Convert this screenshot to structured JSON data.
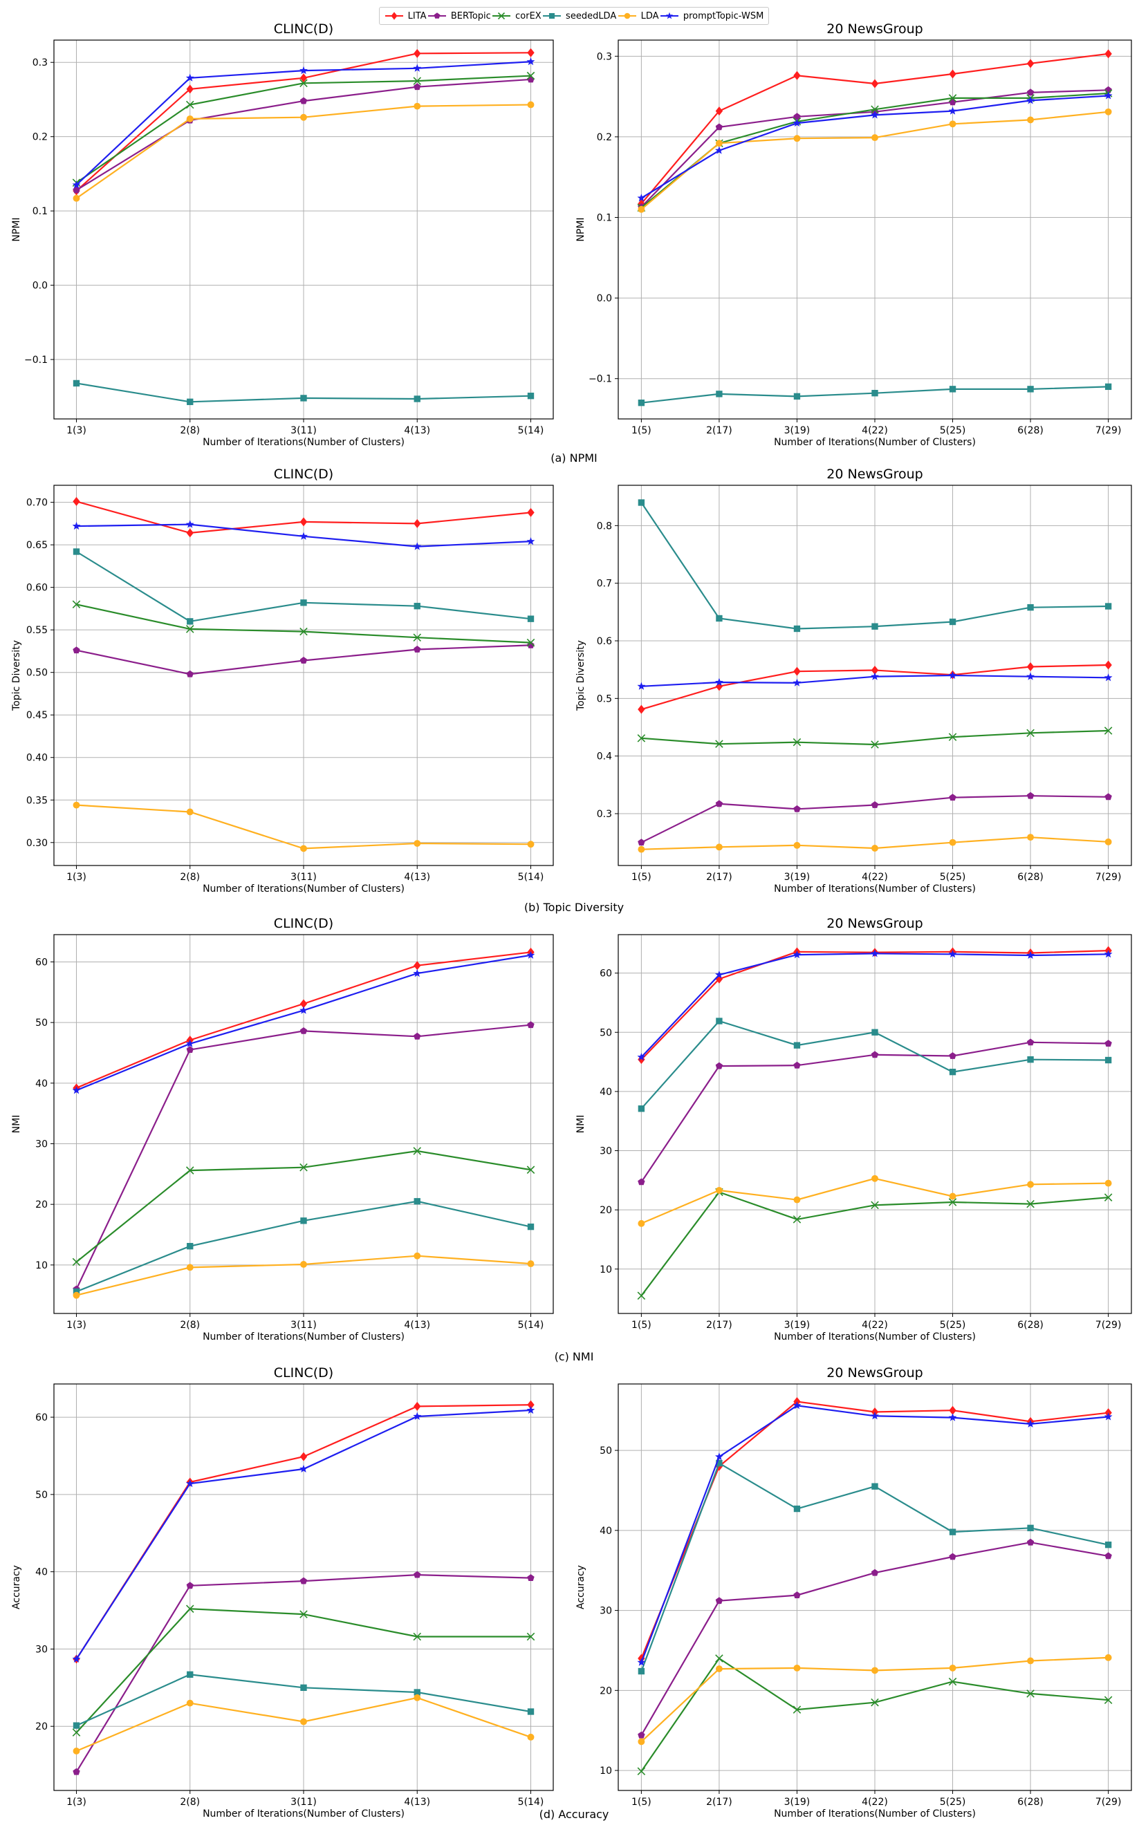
{
  "legend": [
    {
      "name": "LITA",
      "color": "#ff1e1e",
      "marker": "diamond"
    },
    {
      "name": "BERTopic",
      "color": "#8b1e8b",
      "marker": "pentagon"
    },
    {
      "name": "corEX",
      "color": "#2a8c2a",
      "marker": "x"
    },
    {
      "name": "seededLDA",
      "color": "#2a8c8c",
      "marker": "square"
    },
    {
      "name": "LDA",
      "color": "#ffb020",
      "marker": "circle"
    },
    {
      "name": "promptTopic-WSM",
      "color": "#1e1ef0",
      "marker": "star"
    }
  ],
  "chart_data": [
    {
      "type": "line",
      "title": "CLINC(D)",
      "panel": "(a) NPMI",
      "showCaption": true,
      "xlabel": "Number of Iterations(Number of Clusters)",
      "ylabel": "NPMI",
      "categories": [
        "1(3)",
        "2(8)",
        "3(11)",
        "4(13)",
        "5(14)"
      ],
      "ylim": [
        -0.18,
        0.33
      ],
      "yticks": [
        -0.1,
        0.0,
        0.1,
        0.2,
        0.3
      ],
      "yticklabels": [
        "−0.1",
        "0.0",
        "0.1",
        "0.2",
        "0.3"
      ],
      "series": [
        {
          "name": "LITA",
          "values": [
            0.127,
            0.264,
            0.279,
            0.312,
            0.313
          ]
        },
        {
          "name": "BERTopic",
          "values": [
            0.128,
            0.222,
            0.248,
            0.267,
            0.277
          ]
        },
        {
          "name": "corEX",
          "values": [
            0.138,
            0.243,
            0.272,
            0.275,
            0.282
          ]
        },
        {
          "name": "seededLDA",
          "values": [
            -0.132,
            -0.157,
            -0.152,
            -0.153,
            -0.149
          ]
        },
        {
          "name": "LDA",
          "values": [
            0.117,
            0.224,
            0.226,
            0.241,
            0.243
          ]
        },
        {
          "name": "promptTopic-WSM",
          "values": [
            0.135,
            0.279,
            0.289,
            0.292,
            0.301
          ]
        }
      ]
    },
    {
      "type": "line",
      "title": "20 NewsGroup",
      "panel": "(a) NPMI",
      "showCaption": false,
      "xlabel": "Number of Iterations(Number of Clusters)",
      "ylabel": "NPMI",
      "categories": [
        "1(5)",
        "2(17)",
        "3(19)",
        "4(22)",
        "5(25)",
        "6(28)",
        "7(29)"
      ],
      "ylim": [
        -0.15,
        0.32
      ],
      "yticks": [
        -0.1,
        0.0,
        0.1,
        0.2,
        0.3
      ],
      "yticklabels": [
        "−0.1",
        "0.0",
        "0.1",
        "0.2",
        "0.3"
      ],
      "series": [
        {
          "name": "LITA",
          "values": [
            0.117,
            0.232,
            0.276,
            0.266,
            0.278,
            0.291,
            0.303
          ]
        },
        {
          "name": "BERTopic",
          "values": [
            0.113,
            0.212,
            0.225,
            0.231,
            0.243,
            0.255,
            0.258
          ]
        },
        {
          "name": "corEX",
          "values": [
            0.112,
            0.192,
            0.219,
            0.234,
            0.248,
            0.248,
            0.254
          ]
        },
        {
          "name": "seededLDA",
          "values": [
            -0.13,
            -0.119,
            -0.122,
            -0.118,
            -0.113,
            -0.113,
            -0.11
          ]
        },
        {
          "name": "LDA",
          "values": [
            0.11,
            0.192,
            0.198,
            0.199,
            0.216,
            0.221,
            0.231
          ]
        },
        {
          "name": "promptTopic-WSM",
          "values": [
            0.124,
            0.183,
            0.217,
            0.227,
            0.232,
            0.245,
            0.251
          ]
        }
      ]
    },
    {
      "type": "line",
      "title": "CLINC(D)",
      "panel": "(b) Topic Diversity",
      "showCaption": true,
      "xlabel": "Number of Iterations(Number of Clusters)",
      "ylabel": "Topic Diversity",
      "categories": [
        "1(3)",
        "2(8)",
        "3(11)",
        "4(13)",
        "5(14)"
      ],
      "ylim": [
        0.273,
        0.72
      ],
      "yticks": [
        0.3,
        0.35,
        0.4,
        0.45,
        0.5,
        0.55,
        0.6,
        0.65,
        0.7
      ],
      "yticklabels": [
        "0.30",
        "0.35",
        "0.40",
        "0.45",
        "0.50",
        "0.55",
        "0.60",
        "0.65",
        "0.70"
      ],
      "series": [
        {
          "name": "LITA",
          "values": [
            0.701,
            0.664,
            0.677,
            0.675,
            0.688
          ]
        },
        {
          "name": "BERTopic",
          "values": [
            0.526,
            0.498,
            0.514,
            0.527,
            0.532
          ]
        },
        {
          "name": "corEX",
          "values": [
            0.58,
            0.551,
            0.548,
            0.541,
            0.535
          ]
        },
        {
          "name": "seededLDA",
          "values": [
            0.642,
            0.56,
            0.582,
            0.578,
            0.563
          ]
        },
        {
          "name": "LDA",
          "values": [
            0.344,
            0.336,
            0.293,
            0.299,
            0.298
          ]
        },
        {
          "name": "promptTopic-WSM",
          "values": [
            0.672,
            0.674,
            0.66,
            0.648,
            0.654
          ]
        }
      ]
    },
    {
      "type": "line",
      "title": "20 NewsGroup",
      "panel": "(b) Topic Diversity",
      "showCaption": false,
      "xlabel": "Number of Iterations(Number of Clusters)",
      "ylabel": "Topic Diversity",
      "categories": [
        "1(5)",
        "2(17)",
        "3(19)",
        "4(22)",
        "5(25)",
        "6(28)",
        "7(29)"
      ],
      "ylim": [
        0.21,
        0.87
      ],
      "yticks": [
        0.3,
        0.4,
        0.5,
        0.6,
        0.7,
        0.8
      ],
      "yticklabels": [
        "0.3",
        "0.4",
        "0.5",
        "0.6",
        "0.7",
        "0.8"
      ],
      "series": [
        {
          "name": "LITA",
          "values": [
            0.481,
            0.521,
            0.547,
            0.549,
            0.541,
            0.555,
            0.558
          ]
        },
        {
          "name": "BERTopic",
          "values": [
            0.25,
            0.317,
            0.308,
            0.315,
            0.328,
            0.331,
            0.329
          ]
        },
        {
          "name": "corEX",
          "values": [
            0.431,
            0.421,
            0.424,
            0.42,
            0.433,
            0.44,
            0.444
          ]
        },
        {
          "name": "seededLDA",
          "values": [
            0.84,
            0.639,
            0.621,
            0.625,
            0.633,
            0.658,
            0.66
          ]
        },
        {
          "name": "LDA",
          "values": [
            0.238,
            0.242,
            0.245,
            0.24,
            0.25,
            0.259,
            0.251
          ]
        },
        {
          "name": "promptTopic-WSM",
          "values": [
            0.521,
            0.528,
            0.527,
            0.538,
            0.54,
            0.538,
            0.536
          ]
        }
      ]
    },
    {
      "type": "line",
      "title": "CLINC(D)",
      "panel": "(c) NMI",
      "showCaption": true,
      "xlabel": "Number of Iterations(Number of Clusters)",
      "ylabel": "NMI",
      "categories": [
        "1(3)",
        "2(8)",
        "3(11)",
        "4(13)",
        "5(14)"
      ],
      "ylim": [
        2.0,
        64.5
      ],
      "yticks": [
        10,
        20,
        30,
        40,
        50,
        60
      ],
      "yticklabels": [
        "10",
        "20",
        "30",
        "40",
        "50",
        "60"
      ],
      "series": [
        {
          "name": "LITA",
          "values": [
            39.2,
            47.1,
            53.1,
            59.4,
            61.6
          ]
        },
        {
          "name": "BERTopic",
          "values": [
            6.0,
            45.5,
            48.6,
            47.7,
            49.6
          ]
        },
        {
          "name": "corEX",
          "values": [
            10.5,
            25.6,
            26.1,
            28.8,
            25.7
          ]
        },
        {
          "name": "seededLDA",
          "values": [
            5.6,
            13.1,
            17.3,
            20.5,
            16.3
          ]
        },
        {
          "name": "LDA",
          "values": [
            5.0,
            9.6,
            10.1,
            11.5,
            10.2
          ]
        },
        {
          "name": "promptTopic-WSM",
          "values": [
            38.8,
            46.5,
            52.0,
            58.1,
            61.1
          ]
        }
      ]
    },
    {
      "type": "line",
      "title": "20 NewsGroup",
      "panel": "(c) NMI",
      "showCaption": false,
      "xlabel": "Number of Iterations(Number of Clusters)",
      "ylabel": "NMI",
      "categories": [
        "1(5)",
        "2(17)",
        "3(19)",
        "4(22)",
        "5(25)",
        "6(28)",
        "7(29)"
      ],
      "ylim": [
        2.5,
        66.5
      ],
      "yticks": [
        10,
        20,
        30,
        40,
        50,
        60
      ],
      "yticklabels": [
        "10",
        "20",
        "30",
        "40",
        "50",
        "60"
      ],
      "series": [
        {
          "name": "LITA",
          "values": [
            45.4,
            59.0,
            63.6,
            63.5,
            63.6,
            63.4,
            63.8
          ]
        },
        {
          "name": "BERTopic",
          "values": [
            24.7,
            44.3,
            44.4,
            46.2,
            46.0,
            48.3,
            48.1
          ]
        },
        {
          "name": "corEX",
          "values": [
            5.5,
            23.0,
            18.4,
            20.8,
            21.3,
            21.0,
            22.1
          ]
        },
        {
          "name": "seededLDA",
          "values": [
            37.1,
            51.9,
            47.8,
            50.0,
            43.3,
            45.4,
            45.3
          ]
        },
        {
          "name": "LDA",
          "values": [
            17.7,
            23.3,
            21.7,
            25.3,
            22.3,
            24.3,
            24.5
          ]
        },
        {
          "name": "promptTopic-WSM",
          "values": [
            45.8,
            59.7,
            63.1,
            63.3,
            63.2,
            63.0,
            63.2
          ]
        }
      ]
    },
    {
      "type": "line",
      "title": "CLINC(D)",
      "panel": "(d) Accuracy",
      "showCaption": true,
      "xlabel": "Number of Iterations(Number of Clusters)",
      "ylabel": "Accuracy",
      "categories": [
        "1(3)",
        "2(8)",
        "3(11)",
        "4(13)",
        "5(14)"
      ],
      "ylim": [
        11.7,
        64.3
      ],
      "yticks": [
        20,
        30,
        40,
        50,
        60
      ],
      "yticklabels": [
        "20",
        "30",
        "40",
        "50",
        "60"
      ],
      "series": [
        {
          "name": "LITA",
          "values": [
            28.7,
            51.6,
            54.9,
            61.4,
            61.6
          ]
        },
        {
          "name": "BERTopic",
          "values": [
            14.1,
            38.2,
            38.8,
            39.6,
            39.2
          ]
        },
        {
          "name": "corEX",
          "values": [
            19.2,
            35.2,
            34.5,
            31.6,
            31.6
          ]
        },
        {
          "name": "seededLDA",
          "values": [
            20.1,
            26.7,
            25.0,
            24.4,
            21.9
          ]
        },
        {
          "name": "LDA",
          "values": [
            16.8,
            23.0,
            20.6,
            23.7,
            18.6
          ]
        },
        {
          "name": "promptTopic-WSM",
          "values": [
            28.7,
            51.4,
            53.3,
            60.1,
            60.9
          ]
        }
      ]
    },
    {
      "type": "line",
      "title": "20 NewsGroup",
      "panel": "(d) Accuracy",
      "showCaption": false,
      "xlabel": "Number of Iterations(Number of Clusters)",
      "ylabel": "Accuracy",
      "categories": [
        "1(5)",
        "2(17)",
        "3(19)",
        "4(22)",
        "5(25)",
        "6(28)",
        "7(29)"
      ],
      "ylim": [
        7.5,
        58.3
      ],
      "yticks": [
        10,
        20,
        30,
        40,
        50
      ],
      "yticklabels": [
        "10",
        "20",
        "30",
        "40",
        "50"
      ],
      "series": [
        {
          "name": "LITA",
          "values": [
            24.0,
            48.0,
            56.1,
            54.8,
            55.0,
            53.6,
            54.7
          ]
        },
        {
          "name": "BERTopic",
          "values": [
            14.4,
            31.2,
            31.9,
            34.7,
            36.7,
            38.5,
            36.8
          ]
        },
        {
          "name": "corEX",
          "values": [
            9.9,
            24.0,
            17.6,
            18.5,
            21.1,
            19.6,
            18.8
          ]
        },
        {
          "name": "seededLDA",
          "values": [
            22.4,
            48.4,
            42.7,
            45.5,
            39.8,
            40.3,
            38.2
          ]
        },
        {
          "name": "LDA",
          "values": [
            13.6,
            22.7,
            22.8,
            22.5,
            22.8,
            23.7,
            24.1
          ]
        },
        {
          "name": "promptTopic-WSM",
          "values": [
            23.5,
            49.2,
            55.6,
            54.3,
            54.1,
            53.3,
            54.2
          ]
        }
      ]
    }
  ]
}
